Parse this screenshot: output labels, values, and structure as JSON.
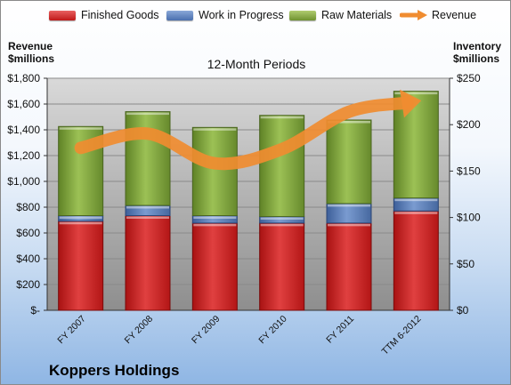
{
  "company": "Koppers Holdings",
  "chart_data": {
    "type": "bar",
    "stacked": true,
    "subtitle": "12-Month Periods",
    "categories": [
      "FY 2007",
      "FY 2008",
      "FY 2009",
      "FY 2010",
      "FY 2011",
      "TTM 6-2012"
    ],
    "left_axis": {
      "title_line1": "Revenue",
      "title_line2": "$millions",
      "range": [
        0,
        1800
      ],
      "ticks": [
        "$-",
        "$200",
        "$400",
        "$600",
        "$800",
        "$1,000",
        "$1,200",
        "$1,400",
        "$1,600",
        "$1,800"
      ]
    },
    "right_axis": {
      "title_line1": "Inventory",
      "title_line2": "$millions",
      "range": [
        0,
        250
      ],
      "ticks": [
        "$0",
        "$50",
        "$100",
        "$150",
        "$200",
        "$250"
      ]
    },
    "series": [
      {
        "name": "Finished Goods",
        "axis": "right",
        "color": "#d42a2a",
        "values": [
          96,
          102,
          94,
          94,
          94,
          107
        ]
      },
      {
        "name": "Work in Progress",
        "axis": "right",
        "color": "#5b80bd",
        "values": [
          6,
          11,
          8,
          7,
          21,
          14
        ]
      },
      {
        "name": "Raw Materials",
        "axis": "right",
        "color": "#8db04a",
        "values": [
          96,
          101,
          95,
          109,
          90,
          115
        ]
      },
      {
        "name": "Revenue",
        "axis": "left",
        "type": "line",
        "color": "#f08c30",
        "values": [
          1260,
          1370,
          1140,
          1250,
          1540,
          1620
        ]
      }
    ],
    "grid": true,
    "legend": "top"
  }
}
